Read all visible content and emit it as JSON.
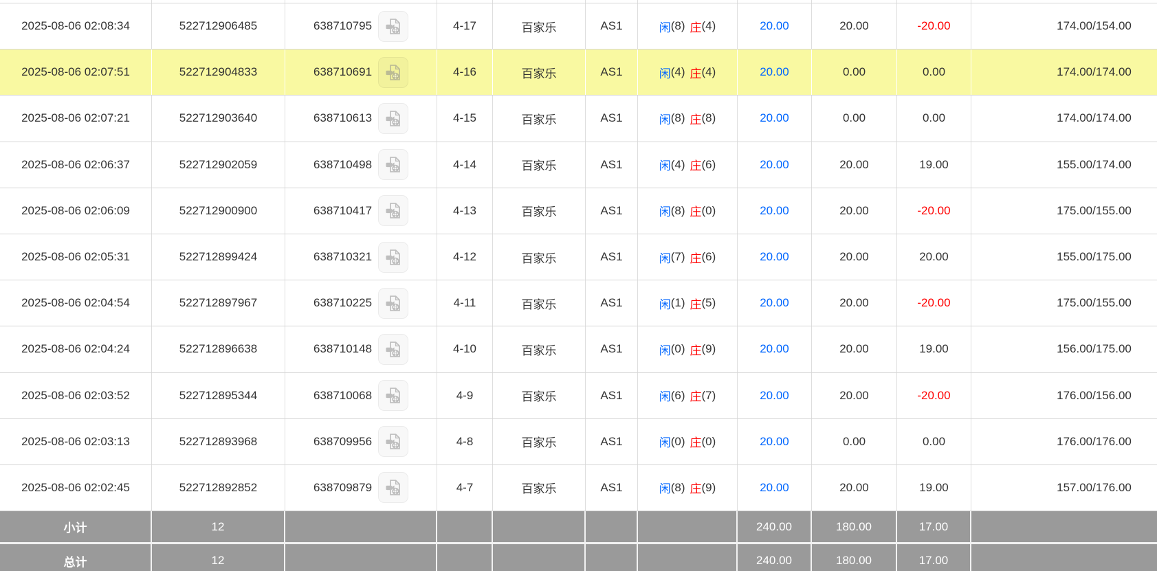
{
  "colors": {
    "accent_blue": "#0066ff",
    "negative_red": "#ff0000",
    "highlight_yellow": "#f9f9a1",
    "summary_gray": "#9a9a9a",
    "grid_border": "#d5d5d5"
  },
  "icons": {
    "video_replay": "video-replay-icon"
  },
  "table": {
    "result_labels": {
      "xian": "闲",
      "zhuang": "庄"
    },
    "rows": [
      {
        "time": "2025-08-06 02:08:34",
        "bet_id": "522712906485",
        "round_id": "638710795",
        "round_no": "4-17",
        "game": "百家乐",
        "table": "AS1",
        "xian": "(8)",
        "zhuang": "(4)",
        "bet": "20.00",
        "valid": "20.00",
        "winloss": "-20.00",
        "balance": "174.00/154.00",
        "highlight": false
      },
      {
        "time": "2025-08-06 02:07:51",
        "bet_id": "522712904833",
        "round_id": "638710691",
        "round_no": "4-16",
        "game": "百家乐",
        "table": "AS1",
        "xian": "(4)",
        "zhuang": "(4)",
        "bet": "20.00",
        "valid": "0.00",
        "winloss": "0.00",
        "balance": "174.00/174.00",
        "highlight": true
      },
      {
        "time": "2025-08-06 02:07:21",
        "bet_id": "522712903640",
        "round_id": "638710613",
        "round_no": "4-15",
        "game": "百家乐",
        "table": "AS1",
        "xian": "(8)",
        "zhuang": "(8)",
        "bet": "20.00",
        "valid": "0.00",
        "winloss": "0.00",
        "balance": "174.00/174.00",
        "highlight": false
      },
      {
        "time": "2025-08-06 02:06:37",
        "bet_id": "522712902059",
        "round_id": "638710498",
        "round_no": "4-14",
        "game": "百家乐",
        "table": "AS1",
        "xian": "(4)",
        "zhuang": "(6)",
        "bet": "20.00",
        "valid": "20.00",
        "winloss": "19.00",
        "balance": "155.00/174.00",
        "highlight": false
      },
      {
        "time": "2025-08-06 02:06:09",
        "bet_id": "522712900900",
        "round_id": "638710417",
        "round_no": "4-13",
        "game": "百家乐",
        "table": "AS1",
        "xian": "(8)",
        "zhuang": "(0)",
        "bet": "20.00",
        "valid": "20.00",
        "winloss": "-20.00",
        "balance": "175.00/155.00",
        "highlight": false
      },
      {
        "time": "2025-08-06 02:05:31",
        "bet_id": "522712899424",
        "round_id": "638710321",
        "round_no": "4-12",
        "game": "百家乐",
        "table": "AS1",
        "xian": "(7)",
        "zhuang": "(6)",
        "bet": "20.00",
        "valid": "20.00",
        "winloss": "20.00",
        "balance": "155.00/175.00",
        "highlight": false
      },
      {
        "time": "2025-08-06 02:04:54",
        "bet_id": "522712897967",
        "round_id": "638710225",
        "round_no": "4-11",
        "game": "百家乐",
        "table": "AS1",
        "xian": "(1)",
        "zhuang": "(5)",
        "bet": "20.00",
        "valid": "20.00",
        "winloss": "-20.00",
        "balance": "175.00/155.00",
        "highlight": false
      },
      {
        "time": "2025-08-06 02:04:24",
        "bet_id": "522712896638",
        "round_id": "638710148",
        "round_no": "4-10",
        "game": "百家乐",
        "table": "AS1",
        "xian": "(0)",
        "zhuang": "(9)",
        "bet": "20.00",
        "valid": "20.00",
        "winloss": "19.00",
        "balance": "156.00/175.00",
        "highlight": false
      },
      {
        "time": "2025-08-06 02:03:52",
        "bet_id": "522712895344",
        "round_id": "638710068",
        "round_no": "4-9",
        "game": "百家乐",
        "table": "AS1",
        "xian": "(6)",
        "zhuang": "(7)",
        "bet": "20.00",
        "valid": "20.00",
        "winloss": "-20.00",
        "balance": "176.00/156.00",
        "highlight": false
      },
      {
        "time": "2025-08-06 02:03:13",
        "bet_id": "522712893968",
        "round_id": "638709956",
        "round_no": "4-8",
        "game": "百家乐",
        "table": "AS1",
        "xian": "(0)",
        "zhuang": "(0)",
        "bet": "20.00",
        "valid": "0.00",
        "winloss": "0.00",
        "balance": "176.00/176.00",
        "highlight": false
      },
      {
        "time": "2025-08-06 02:02:45",
        "bet_id": "522712892852",
        "round_id": "638709879",
        "round_no": "4-7",
        "game": "百家乐",
        "table": "AS1",
        "xian": "(8)",
        "zhuang": "(9)",
        "bet": "20.00",
        "valid": "20.00",
        "winloss": "19.00",
        "balance": "157.00/176.00",
        "highlight": false
      }
    ],
    "summary_rows": [
      {
        "label": "小计",
        "count": "12",
        "bet_total": "240.00",
        "valid_total": "180.00",
        "winloss_total": "17.00"
      },
      {
        "label": "总计",
        "count": "12",
        "bet_total": "240.00",
        "valid_total": "180.00",
        "winloss_total": "17.00"
      }
    ]
  }
}
